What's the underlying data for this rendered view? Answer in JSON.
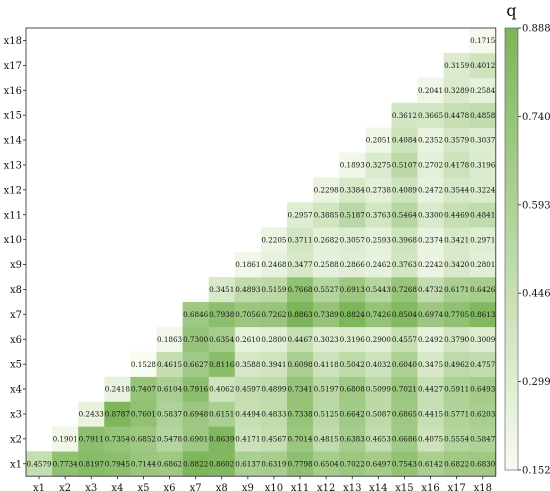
{
  "chart_data": {
    "type": "heatmap",
    "title": "",
    "xlabel": "",
    "ylabel": "",
    "x_categories": [
      "x1",
      "x2",
      "x3",
      "x4",
      "x5",
      "x6",
      "x7",
      "x8",
      "x9",
      "x10",
      "x11",
      "x12",
      "x13",
      "x14",
      "x15",
      "x16",
      "x17",
      "x18"
    ],
    "y_categories": [
      "x1",
      "x2",
      "x3",
      "x4",
      "x5",
      "x6",
      "x7",
      "x8",
      "x9",
      "x10",
      "x11",
      "x12",
      "x13",
      "x14",
      "x15",
      "x16",
      "x17",
      "x18"
    ],
    "lower_triangular": true,
    "rows": [
      [
        0.4579,
        0.7734,
        0.8197,
        0.7945,
        0.7144,
        0.6862,
        0.8822,
        0.8602,
        0.6137,
        0.6319,
        0.7798,
        0.6504,
        0.7022,
        0.6497,
        0.7543,
        0.6142,
        0.6822,
        0.683
      ],
      [
        0.1901,
        0.7911,
        0.7354,
        0.6852,
        0.5478,
        0.6901,
        0.8639,
        0.4171,
        0.4567,
        0.7014,
        0.4815,
        0.6383,
        0.4653,
        0.6686,
        0.4075,
        0.5554,
        0.5847
      ],
      [
        0.2433,
        0.8787,
        0.7601,
        0.5837,
        0.6948,
        0.6151,
        0.4494,
        0.4833,
        0.7338,
        0.5125,
        0.6642,
        0.5087,
        0.6865,
        0.4415,
        0.5771,
        0.6203
      ],
      [
        0.2418,
        0.7407,
        0.6104,
        0.7916,
        0.4062,
        0.4597,
        0.4899,
        0.7341,
        0.5197,
        0.6808,
        0.5099,
        0.7021,
        0.4427,
        0.5911,
        0.6493
      ],
      [
        0.1528,
        0.4615,
        0.6627,
        0.8116,
        0.3588,
        0.3941,
        0.6098,
        0.4118,
        0.5042,
        0.4032,
        0.604,
        0.3475,
        0.4962,
        0.4757
      ],
      [
        0.1863,
        0.73,
        0.6354,
        0.261,
        0.28,
        0.4467,
        0.3023,
        0.3196,
        0.29,
        0.4557,
        0.2492,
        0.379,
        0.3009
      ],
      [
        0.6846,
        0.7938,
        0.7056,
        0.7262,
        0.8863,
        0.7389,
        0.8824,
        0.7426,
        0.8504,
        0.6974,
        0.7705,
        0.8613
      ],
      [
        0.3451,
        0.4893,
        0.5159,
        0.7668,
        0.5527,
        0.6913,
        0.5443,
        0.7268,
        0.4732,
        0.6171,
        0.6426
      ],
      [
        0.1861,
        0.2468,
        0.3477,
        0.2588,
        0.2866,
        0.2462,
        0.3763,
        0.2242,
        0.342,
        0.2801
      ],
      [
        0.2205,
        0.3711,
        0.2682,
        0.3057,
        0.2593,
        0.3968,
        0.2374,
        0.3421,
        0.2971
      ],
      [
        0.2957,
        0.3885,
        0.5187,
        0.3763,
        0.5464,
        0.33,
        0.4469,
        0.4841
      ],
      [
        0.2298,
        0.3384,
        0.2738,
        0.4089,
        0.2472,
        0.3544,
        0.3224
      ],
      [
        0.1893,
        0.3275,
        0.5107,
        0.2702,
        0.4178,
        0.3196
      ],
      [
        0.2051,
        0.4084,
        0.2352,
        0.3579,
        0.3037
      ],
      [
        0.3612,
        0.3665,
        0.4478,
        0.4858
      ],
      [
        0.2041,
        0.3289,
        0.2584
      ],
      [
        0.3159,
        0.4012
      ],
      [
        0.1715
      ]
    ],
    "colorbar": {
      "title": "q",
      "min": 0.152,
      "max": 0.888,
      "ticks": [
        "0.8880",
        "0.7408",
        "0.5936",
        "0.4464",
        "0.2992",
        "0.1520"
      ],
      "color_low": "#f7fbf0",
      "color_high": "#7db55a"
    }
  }
}
